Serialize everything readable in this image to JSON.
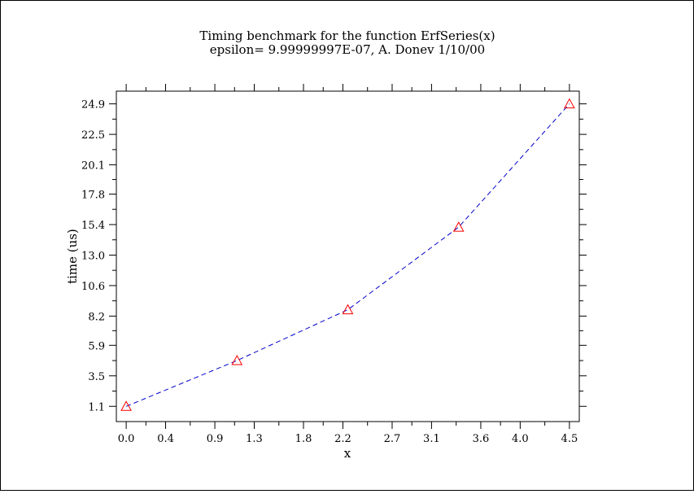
{
  "chart_data": {
    "type": "line",
    "title": "Timing benchmark for the function ErfSeries(x)",
    "subtitle": "epsilon=  9.99999997E-07, A. Donev 1/10/00",
    "xlabel": "x",
    "ylabel": "time (us)",
    "xlim": [
      -0.1,
      4.6
    ],
    "ylim": [
      -0.1,
      25.9
    ],
    "x_ticks": [
      "0.0",
      "0.4",
      "0.9",
      "1.3",
      "1.8",
      "2.2",
      "2.7",
      "3.1",
      "3.6",
      "4.0",
      "4.5"
    ],
    "y_ticks": [
      "1.1",
      "3.5",
      "5.9",
      "8.2",
      "10.6",
      "13.0",
      "15.4",
      "17.8",
      "20.1",
      "22.5",
      "24.9"
    ],
    "grid": false,
    "legend": "none",
    "series": [
      {
        "x": [
          0.0,
          1.125,
          2.25,
          3.375,
          4.5
        ],
        "y": [
          1.1,
          4.7,
          8.7,
          15.2,
          24.9
        ],
        "line_color": "#0000cc",
        "line_style": "dashed",
        "marker": "triangle",
        "marker_color": "#ff0000"
      }
    ]
  }
}
